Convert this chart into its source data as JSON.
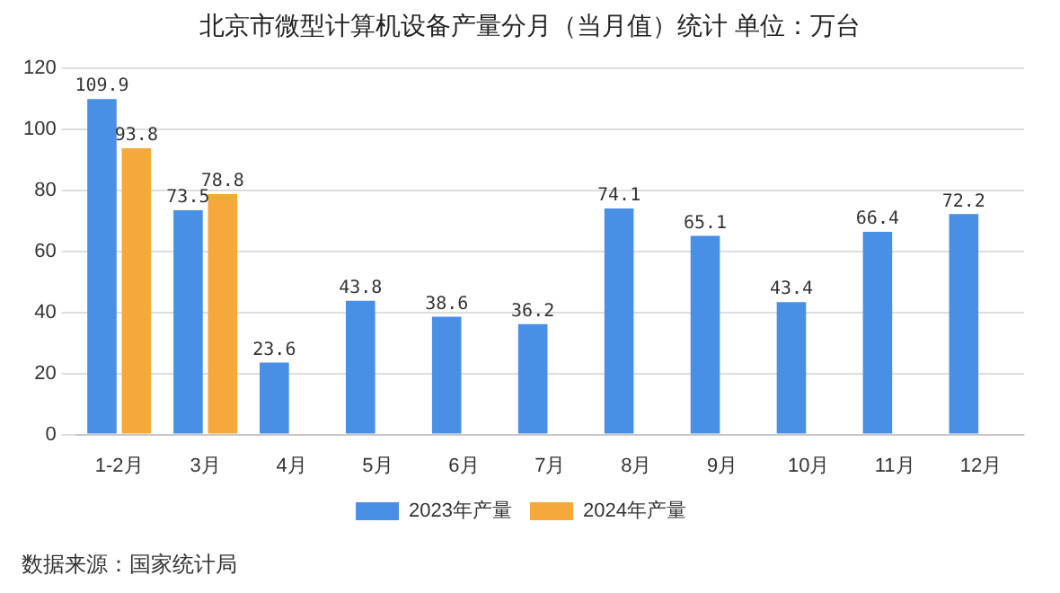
{
  "chart_data": {
    "type": "bar",
    "title": "北京市微型计算机设备产量分月（当月值）统计  单位：万台",
    "categories": [
      "1-2月",
      "3月",
      "4月",
      "5月",
      "6月",
      "7月",
      "8月",
      "9月",
      "10月",
      "11月",
      "12月"
    ],
    "series": [
      {
        "name": "2023年产量",
        "color": "#4a8fe6",
        "values": [
          109.9,
          73.5,
          23.6,
          43.8,
          38.6,
          36.2,
          74.1,
          65.1,
          43.4,
          66.4,
          72.2
        ]
      },
      {
        "name": "2024年产量",
        "color": "#f5a93a",
        "values": [
          93.8,
          78.8,
          null,
          null,
          null,
          null,
          null,
          null,
          null,
          null,
          null
        ]
      }
    ],
    "ylim": [
      0,
      120
    ],
    "yticks": [
      0,
      20,
      40,
      60,
      80,
      100,
      120
    ],
    "grid": "y",
    "legend": "bottom",
    "data_labels": true,
    "annotations": [
      "数据来源：国家统计局"
    ]
  }
}
